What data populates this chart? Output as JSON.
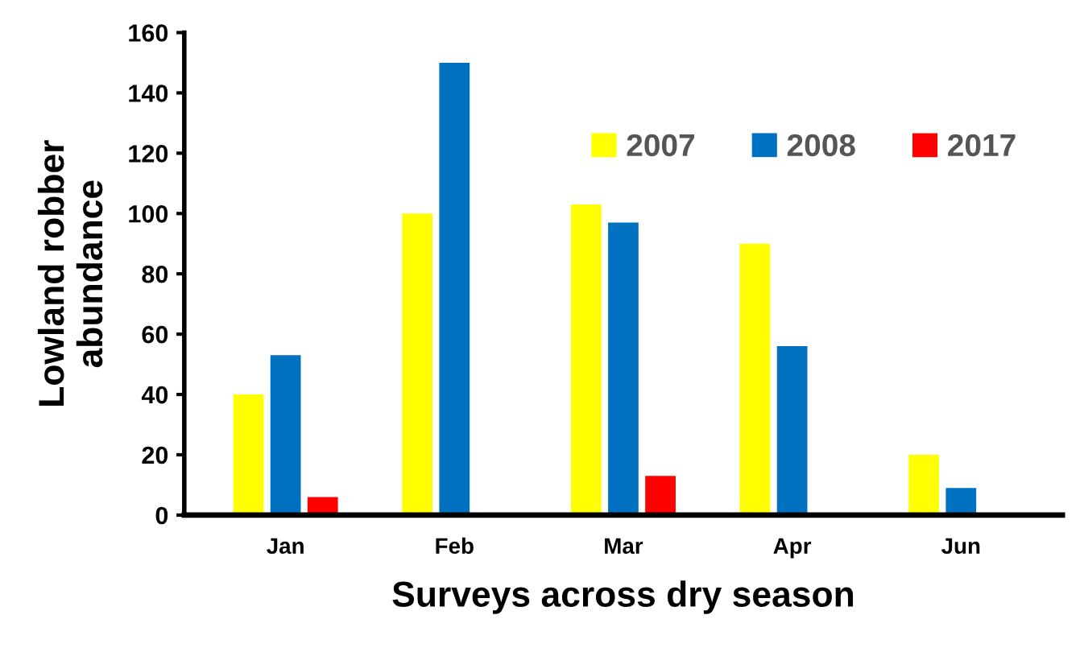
{
  "chart_data": {
    "type": "bar",
    "xlabel": "Surveys across dry season",
    "ylabel": "Lowland robber\nabundance",
    "categories": [
      "Jan",
      "Feb",
      "Mar",
      "Apr",
      "Jun"
    ],
    "series": [
      {
        "name": "2007",
        "color": "#ffff00",
        "values": [
          40,
          100,
          103,
          90,
          20
        ]
      },
      {
        "name": "2008",
        "color": "#0070c0",
        "values": [
          53,
          150,
          97,
          56,
          9
        ]
      },
      {
        "name": "2017",
        "color": "#ff0000",
        "values": [
          6,
          null,
          13,
          null,
          null
        ]
      }
    ],
    "ylim": [
      0,
      160
    ],
    "yticks": [
      0,
      20,
      40,
      60,
      80,
      100,
      120,
      140,
      160
    ],
    "grid": false,
    "legend": "top right"
  }
}
